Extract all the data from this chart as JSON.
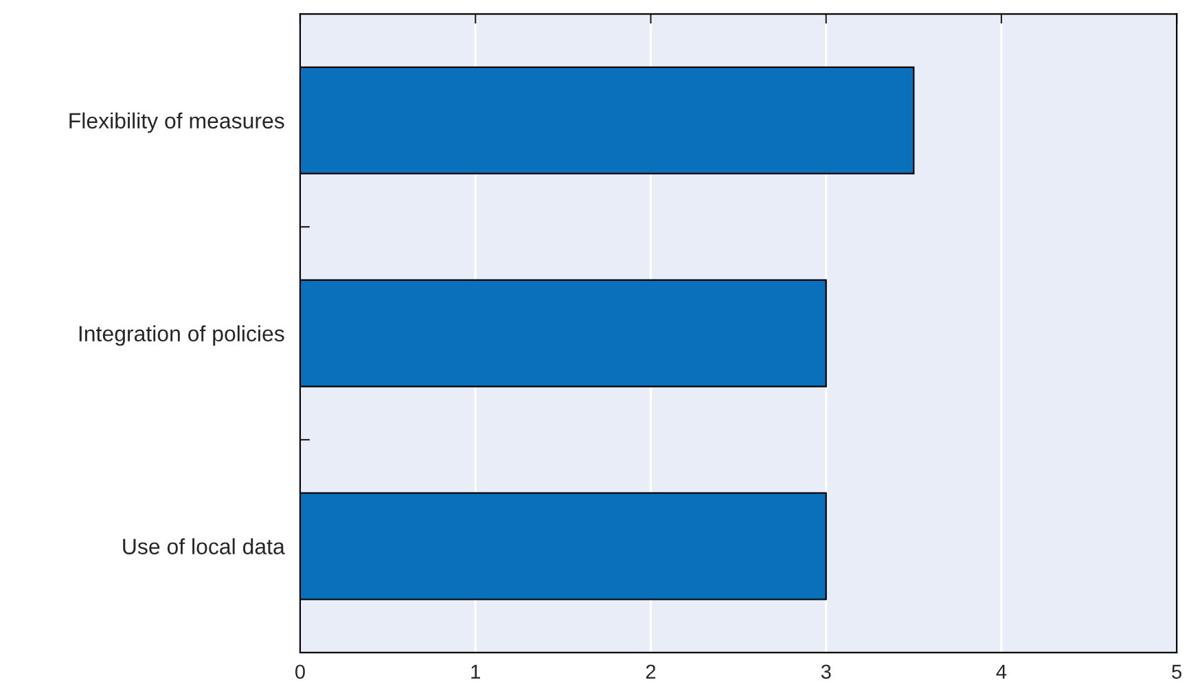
{
  "chart_data": {
    "type": "bar",
    "orientation": "horizontal",
    "categories": [
      "Flexibility of measures",
      "Integration of policies",
      "Use of local data"
    ],
    "series": [
      {
        "color": "#0a70bb",
        "values": [
          3.5,
          3,
          3
        ]
      }
    ],
    "xlim": [
      0,
      5
    ],
    "xticks": [
      0,
      1,
      2,
      3,
      4,
      5
    ],
    "grid": "x",
    "legend": false
  }
}
